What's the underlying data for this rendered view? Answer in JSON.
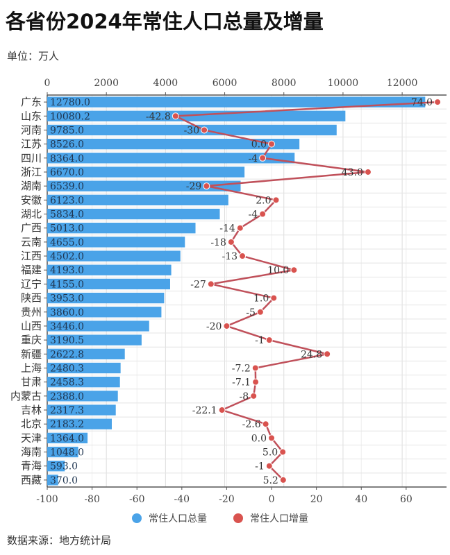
{
  "title": "各省份2024年常住人口总量及增量",
  "unit": "单位：万人",
  "source": "数据来源：地方统计局",
  "colors": {
    "bar": "#4aa3e8",
    "line": "#c0505a",
    "point": "#d9534f",
    "grid": "#dddddd"
  },
  "chart_data": {
    "type": "bar+line",
    "orientation": "horizontal",
    "categories": [
      "广东",
      "山东",
      "河南",
      "江苏",
      "四川",
      "浙江",
      "湖南",
      "安徽",
      "湖北",
      "广西",
      "云南",
      "江西",
      "福建",
      "辽宁",
      "陕西",
      "贵州",
      "山西",
      "重庆",
      "新疆",
      "上海",
      "甘肃",
      "内蒙古",
      "吉林",
      "北京",
      "天津",
      "海南",
      "青海",
      "西藏"
    ],
    "series": [
      {
        "name": "常住人口总量",
        "type": "bar",
        "axis": "top",
        "values": [
          12780.0,
          10080.2,
          9785.0,
          8526.0,
          8364.0,
          6670.0,
          6539.0,
          6123.0,
          5834.0,
          5013.0,
          4655.0,
          4502.0,
          4193.0,
          4155.0,
          3953.0,
          3860.0,
          3446.0,
          3190.5,
          2622.8,
          2480.3,
          2458.3,
          2388.0,
          2317.3,
          2183.2,
          1364.0,
          1048.0,
          593.0,
          370.0
        ],
        "labels": [
          "12780.0",
          "10080.2",
          "9785.0",
          "8526.0",
          "8364.0",
          "6670.0",
          "6539.0",
          "6123.0",
          "5834.0",
          "5013.0",
          "4655.0",
          "4502.0",
          "4193.0",
          "4155.0",
          "3953.0",
          "3860.0",
          "3446.0",
          "3190.5",
          "2622.8",
          "2480.3",
          "2458.3",
          "2388.0",
          "2317.3",
          "2183.2",
          "1364.0",
          "1048.0",
          "593.0",
          "370.0"
        ]
      },
      {
        "name": "常住人口增量",
        "type": "line",
        "axis": "bottom",
        "values": [
          74.0,
          -42.8,
          -30,
          0.0,
          -4,
          43.0,
          -29,
          2.0,
          -4,
          -14,
          -18,
          -13,
          10.0,
          -27,
          1.0,
          -5,
          -20,
          -1,
          24.8,
          -7.2,
          -7.1,
          -8,
          -22.1,
          -2.6,
          0.0,
          5.0,
          -1,
          5.2
        ],
        "labels": [
          "74.0",
          "-42.8",
          "-30",
          "0.0",
          "-4",
          "43.0",
          "-29",
          "2.0",
          "-4",
          "-14",
          "-18",
          "-13",
          "10.0",
          "-27",
          "1.0",
          "-5",
          "-20",
          "-1",
          "24.8",
          "-7.2",
          "-7.1",
          "-8",
          "-22.1",
          "-2.6",
          "0.0",
          "5.0",
          "-1",
          "5.2"
        ]
      }
    ],
    "top_axis": {
      "range": [
        0,
        13500
      ],
      "ticks": [
        "0",
        "2000",
        "4000",
        "6000",
        "8000",
        "10000",
        "12000"
      ]
    },
    "bottom_axis": {
      "range": [
        -100,
        78
      ],
      "ticks": [
        "-100",
        "-80",
        "-60",
        "-40",
        "-20",
        "0",
        "20",
        "40",
        "60"
      ]
    },
    "grid": true,
    "legend": {
      "position": "bottom",
      "items": [
        "常住人口总量",
        "常住人口增量"
      ]
    }
  }
}
